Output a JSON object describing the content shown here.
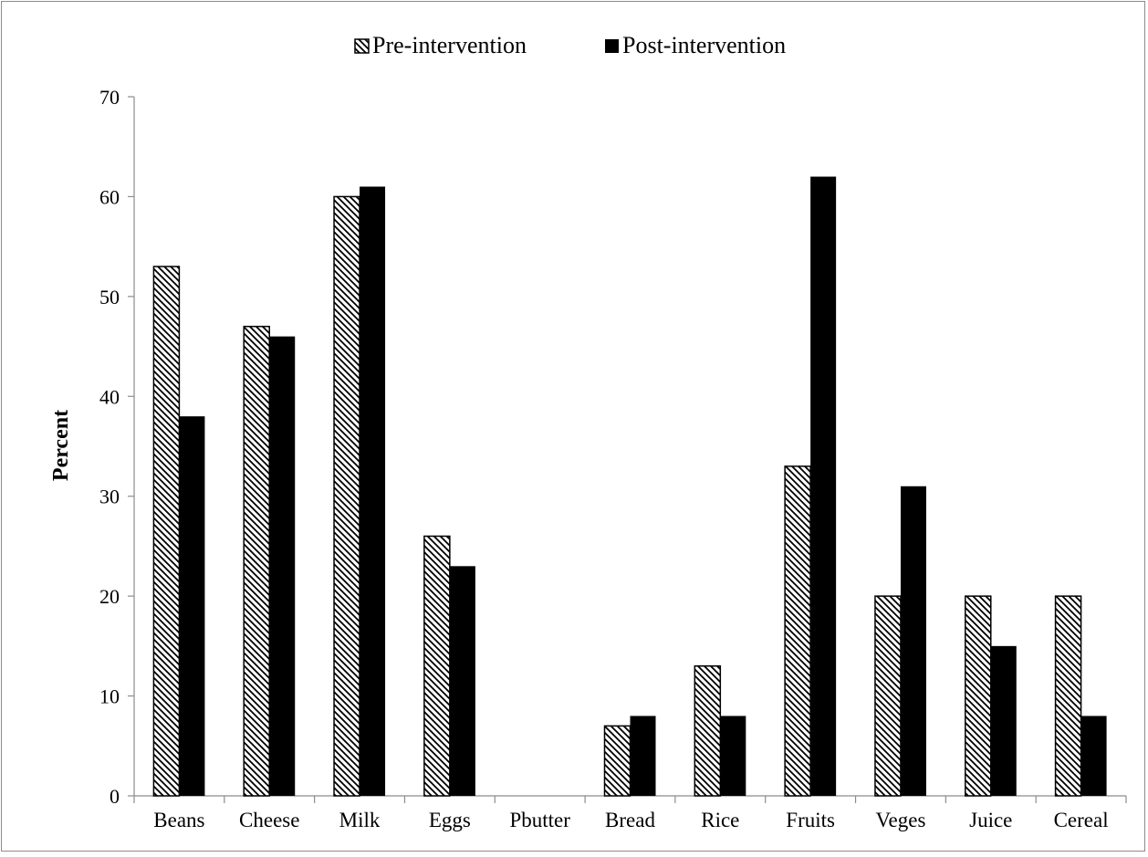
{
  "chart_data": {
    "type": "bar",
    "title": "",
    "xlabel": "",
    "ylabel": "Percent",
    "ylim": [
      0,
      70
    ],
    "yticks": [
      0,
      10,
      20,
      30,
      40,
      50,
      60,
      70
    ],
    "grid": false,
    "legend_position": "top",
    "categories": [
      "Beans",
      "Cheese",
      "Milk",
      "Eggs",
      "Pbutter",
      "Bread",
      "Rice",
      "Fruits",
      "Veges",
      "Juice",
      "Cereal"
    ],
    "series": [
      {
        "name": "Pre-intervention",
        "fill": "hatched",
        "color": "#000000",
        "values": [
          53,
          47,
          60,
          26,
          0,
          7,
          13,
          33,
          20,
          20,
          20
        ]
      },
      {
        "name": "Post-intervention",
        "fill": "solid",
        "color": "#000000",
        "values": [
          38,
          46,
          61,
          23,
          0,
          8,
          8,
          62,
          31,
          15,
          8
        ]
      }
    ]
  }
}
